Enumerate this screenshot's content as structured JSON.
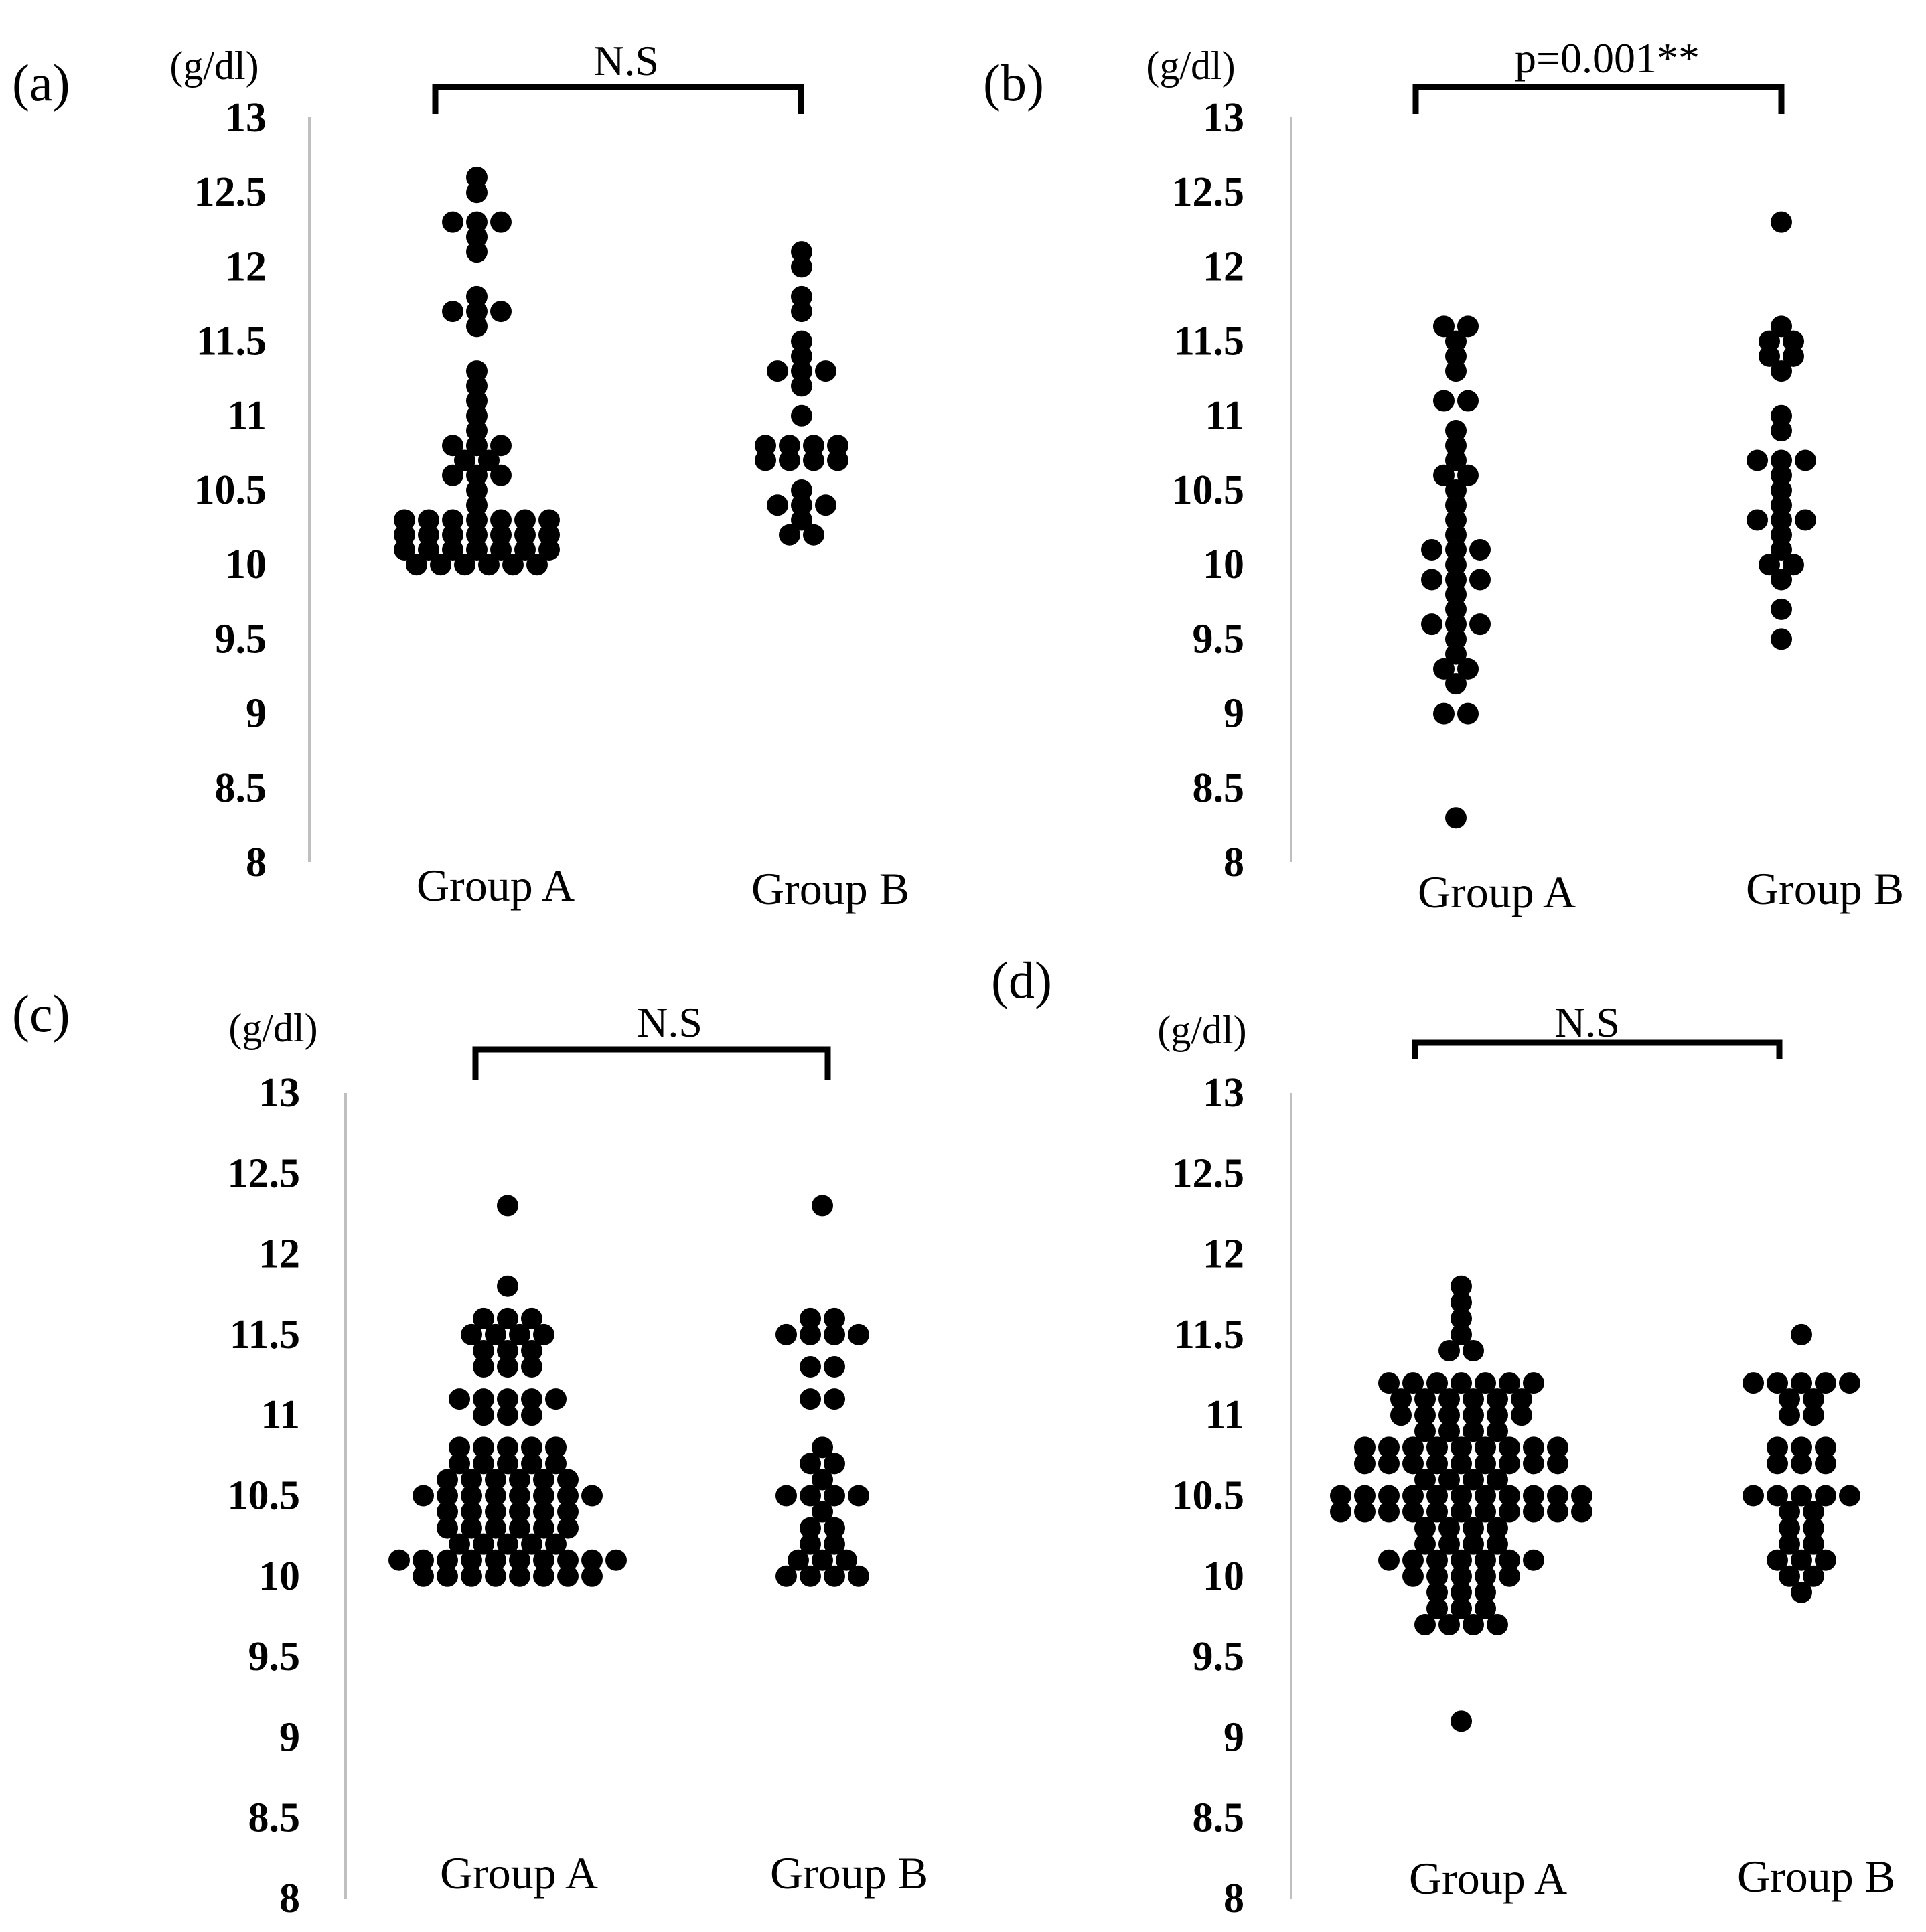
{
  "chart_data": [
    {
      "type": "scatter",
      "panel_label": "(a)",
      "ylabel": "(g/dl)",
      "ylim": [
        8,
        13
      ],
      "yticks": [
        "13",
        "12.5",
        "12",
        "11.5",
        "11",
        "10.5",
        "10",
        "9.5",
        "9",
        "8.5",
        "8"
      ],
      "categories": [
        "Group A",
        "Group B"
      ],
      "significance": "N.S",
      "series": [
        {
          "name": "Group A",
          "values": [
            12.6,
            12.5,
            12.3,
            12.3,
            12.3,
            12.2,
            12.1,
            11.8,
            11.7,
            11.7,
            11.7,
            11.6,
            11.3,
            11.2,
            11.1,
            11.0,
            10.9,
            10.8,
            10.8,
            10.8,
            10.7,
            10.7,
            10.6,
            10.6,
            10.6,
            10.5,
            10.4,
            10.3,
            10.3,
            10.3,
            10.3,
            10.3,
            10.3,
            10.3,
            10.2,
            10.2,
            10.2,
            10.2,
            10.2,
            10.2,
            10.2,
            10.1,
            10.1,
            10.1,
            10.1,
            10.1,
            10.1,
            10.1,
            10.0,
            10.0,
            10.0,
            10.0,
            10.0,
            10.0
          ]
        },
        {
          "name": "Group B",
          "values": [
            12.1,
            12.0,
            11.8,
            11.7,
            11.5,
            11.4,
            11.3,
            11.3,
            11.3,
            11.2,
            11.0,
            10.8,
            10.8,
            10.8,
            10.8,
            10.7,
            10.7,
            10.7,
            10.7,
            10.5,
            10.4,
            10.4,
            10.4,
            10.3,
            10.2,
            10.2
          ]
        }
      ]
    },
    {
      "type": "scatter",
      "panel_label": "(b)",
      "ylabel": "(g/dl)",
      "ylim": [
        8,
        13
      ],
      "yticks": [
        "13",
        "12.5",
        "12",
        "11.5",
        "11",
        "10.5",
        "10",
        "9.5",
        "9",
        "8.5",
        "8"
      ],
      "categories": [
        "Group A",
        "Group B"
      ],
      "significance": "p=0.001**",
      "series": [
        {
          "name": "Group A",
          "values": [
            11.6,
            11.6,
            11.5,
            11.4,
            11.3,
            11.1,
            11.1,
            10.9,
            10.8,
            10.7,
            10.6,
            10.6,
            10.5,
            10.4,
            10.3,
            10.2,
            10.1,
            10.1,
            10.1,
            10.0,
            9.9,
            9.9,
            9.9,
            9.8,
            9.7,
            9.6,
            9.6,
            9.6,
            9.5,
            9.4,
            9.3,
            9.3,
            9.2,
            9.0,
            9.0,
            8.3
          ]
        },
        {
          "name": "Group B",
          "values": [
            12.3,
            11.6,
            11.5,
            11.5,
            11.4,
            11.4,
            11.3,
            11.0,
            10.9,
            10.7,
            10.7,
            10.7,
            10.6,
            10.5,
            10.4,
            10.3,
            10.3,
            10.3,
            10.2,
            10.1,
            10.0,
            10.0,
            9.9,
            9.7,
            9.5
          ]
        }
      ]
    },
    {
      "type": "scatter",
      "panel_label": "(c)",
      "ylabel": "(g/dl)",
      "ylim": [
        8,
        13
      ],
      "yticks": [
        "13",
        "12.5",
        "12",
        "11.5",
        "11",
        "10.5",
        "10",
        "9.5",
        "9",
        "8.5",
        "8"
      ],
      "categories": [
        "Group A",
        "Group B"
      ],
      "significance": "N.S",
      "series": [
        {
          "name": "Group A",
          "values": [
            12.3,
            11.8,
            11.6,
            11.6,
            11.6,
            11.5,
            11.5,
            11.5,
            11.5,
            11.4,
            11.4,
            11.4,
            11.3,
            11.3,
            11.3,
            11.1,
            11.1,
            11.1,
            11.1,
            11.1,
            11.0,
            11.0,
            11.0,
            10.8,
            10.8,
            10.8,
            10.8,
            10.8,
            10.7,
            10.7,
            10.7,
            10.7,
            10.7,
            10.6,
            10.6,
            10.6,
            10.6,
            10.6,
            10.6,
            10.5,
            10.5,
            10.5,
            10.5,
            10.5,
            10.5,
            10.5,
            10.5,
            10.4,
            10.4,
            10.4,
            10.4,
            10.4,
            10.4,
            10.3,
            10.3,
            10.3,
            10.3,
            10.3,
            10.3,
            10.2,
            10.2,
            10.2,
            10.2,
            10.2,
            10.1,
            10.1,
            10.1,
            10.1,
            10.1,
            10.1,
            10.1,
            10.1,
            10.1,
            10.1,
            10.0,
            10.0,
            10.0,
            10.0,
            10.0,
            10.0,
            10.0,
            10.0
          ]
        },
        {
          "name": "Group B",
          "values": [
            12.3,
            11.6,
            11.6,
            11.5,
            11.5,
            11.5,
            11.5,
            11.3,
            11.3,
            11.1,
            11.1,
            10.8,
            10.7,
            10.7,
            10.6,
            10.5,
            10.5,
            10.5,
            10.5,
            10.4,
            10.3,
            10.3,
            10.2,
            10.2,
            10.1,
            10.1,
            10.1,
            10.0,
            10.0,
            10.0,
            10.0
          ]
        }
      ]
    },
    {
      "type": "scatter",
      "panel_label": "(d)",
      "ylabel": "(g/dl)",
      "ylim": [
        8,
        13
      ],
      "yticks": [
        "13",
        "12.5",
        "12",
        "11.5",
        "11",
        "10.5",
        "10",
        "9.5",
        "9",
        "8.5",
        "8"
      ],
      "categories": [
        "Group A",
        "Group B"
      ],
      "significance": "N.S",
      "series": [
        {
          "name": "Group A",
          "values": [
            11.8,
            11.7,
            11.6,
            11.5,
            11.4,
            11.4,
            11.2,
            11.2,
            11.2,
            11.2,
            11.2,
            11.2,
            11.2,
            11.1,
            11.1,
            11.1,
            11.1,
            11.1,
            11.1,
            11.0,
            11.0,
            11.0,
            11.0,
            11.0,
            11.0,
            10.9,
            10.9,
            10.9,
            10.9,
            10.8,
            10.8,
            10.8,
            10.8,
            10.8,
            10.8,
            10.8,
            10.8,
            10.8,
            10.7,
            10.7,
            10.7,
            10.7,
            10.7,
            10.7,
            10.7,
            10.7,
            10.7,
            10.6,
            10.6,
            10.6,
            10.6,
            10.5,
            10.5,
            10.5,
            10.5,
            10.5,
            10.5,
            10.5,
            10.5,
            10.5,
            10.5,
            10.5,
            10.4,
            10.4,
            10.4,
            10.4,
            10.4,
            10.4,
            10.4,
            10.4,
            10.4,
            10.4,
            10.4,
            10.3,
            10.3,
            10.3,
            10.3,
            10.2,
            10.2,
            10.2,
            10.2,
            10.1,
            10.1,
            10.1,
            10.1,
            10.1,
            10.1,
            10.1,
            10.0,
            10.0,
            10.0,
            10.0,
            10.0,
            9.9,
            9.9,
            9.9,
            9.8,
            9.8,
            9.8,
            9.7,
            9.7,
            9.7,
            9.7,
            9.1
          ]
        },
        {
          "name": "Group B",
          "values": [
            11.5,
            11.2,
            11.2,
            11.2,
            11.2,
            11.2,
            11.1,
            11.1,
            11.0,
            11.0,
            10.8,
            10.8,
            10.8,
            10.7,
            10.7,
            10.7,
            10.5,
            10.5,
            10.5,
            10.5,
            10.5,
            10.4,
            10.4,
            10.3,
            10.3,
            10.2,
            10.2,
            10.1,
            10.1,
            10.1,
            10.0,
            10.0,
            9.9
          ]
        }
      ]
    }
  ]
}
